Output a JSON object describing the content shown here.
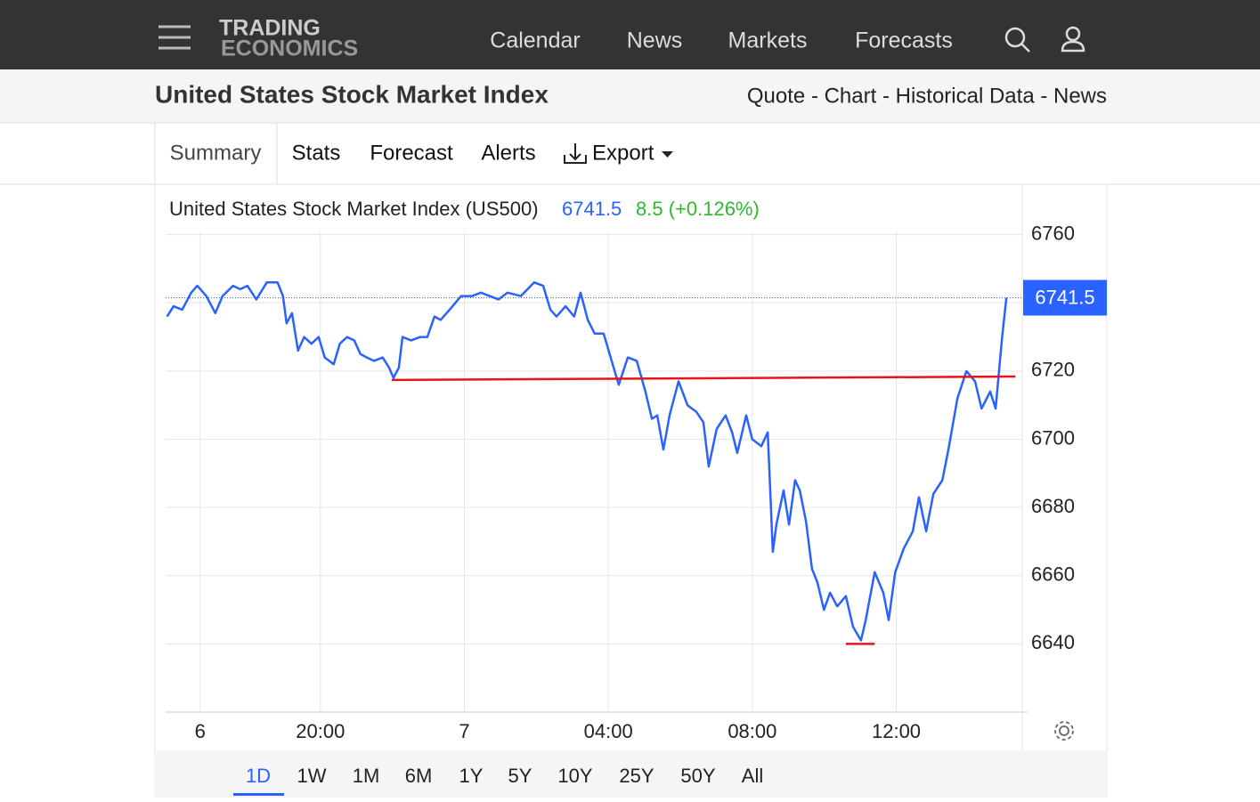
{
  "nav": {
    "logo_top": "TRADING",
    "logo_bottom": "ECONOMICS",
    "items": [
      "Calendar",
      "News",
      "Markets",
      "Forecasts"
    ]
  },
  "header": {
    "title": "United States Stock Market Index",
    "links": "Quote - Chart - Historical Data - News"
  },
  "tabs": [
    "Summary",
    "Stats",
    "Forecast",
    "Alerts",
    "Export"
  ],
  "chart_data": {
    "type": "line",
    "title": "United States Stock Market Index (US500)",
    "last": 6741.5,
    "change": "8.5 (+0.126%)",
    "color": "#2962ff",
    "x": [
      15.74,
      15.92,
      16.16,
      16.41,
      16.58,
      16.83,
      17.08,
      17.28,
      17.57,
      17.77,
      17.97,
      18.22,
      18.51,
      18.81,
      18.96,
      19.06,
      19.21,
      19.38,
      19.55,
      19.75,
      19.95,
      20.12,
      20.37,
      20.54,
      20.74,
      20.94,
      21.11,
      21.29,
      21.49,
      21.73,
      21.91,
      22.03,
      22.18,
      22.28,
      22.52,
      22.77,
      22.97,
      23.17,
      23.34,
      23.59,
      23.91,
      24.21,
      24.46,
      24.7,
      24.95,
      25.2,
      25.57,
      25.94,
      26.19,
      26.39,
      26.56,
      26.81,
      27.05,
      27.23,
      27.43,
      27.62,
      27.87,
      28.12,
      28.29,
      28.54,
      28.79,
      29.03,
      29.21,
      29.36,
      29.53,
      29.7,
      29.95,
      30.2,
      30.45,
      30.64,
      30.79,
      31.01,
      31.26,
      31.44,
      31.58,
      31.83,
      32.0,
      32.25,
      32.43,
      32.57,
      32.67,
      32.87,
      33.02,
      33.19,
      33.32,
      33.49,
      33.66,
      33.81,
      33.99,
      34.16,
      34.36,
      34.6,
      34.8,
      35.02,
      35.15,
      35.4,
      35.64,
      35.79,
      35.97,
      36.21,
      36.46,
      36.63,
      36.83,
      37.03,
      37.28,
      37.45,
      37.7,
      37.95,
      38.19,
      38.37,
      38.61,
      38.76,
      38.94,
      39.06
    ],
    "values": [
      6736,
      6739,
      6738,
      6743,
      6745,
      6742,
      6737,
      6742,
      6745,
      6744,
      6745,
      6741,
      6746,
      6746,
      6742,
      6734,
      6737,
      6726,
      6730,
      6728,
      6730,
      6724,
      6722,
      6728,
      6730,
      6729,
      6725,
      6724,
      6723,
      6724,
      6721,
      6718,
      6721,
      6730,
      6729,
      6730,
      6730,
      6736,
      6735,
      6738,
      6742,
      6742,
      6743,
      6742,
      6741,
      6743,
      6742,
      6746,
      6745,
      6738,
      6736,
      6739,
      6736,
      6743,
      6735,
      6731,
      6731,
      6722,
      6716,
      6724,
      6723,
      6714,
      6706,
      6707,
      6697,
      6707,
      6717,
      6710,
      6708,
      6705,
      6692,
      6703,
      6707,
      6702,
      6696,
      6707,
      6700,
      6698,
      6702,
      6667,
      6675,
      6685,
      6675,
      6688,
      6685,
      6676,
      6662,
      6658,
      6650,
      6655,
      6651,
      6654,
      6645,
      6641,
      6647,
      6661,
      6655,
      6647,
      6661,
      6668,
      6673,
      6683,
      6673,
      6684,
      6688,
      6697,
      6712,
      6720,
      6717,
      6709,
      6714,
      6709,
      6730,
      6741.5
    ],
    "annotations": [
      {
        "color": "#e8141c",
        "x": [
          21.98,
          39.31
        ],
        "y": [
          6717.4,
          6718.4
        ]
      },
      {
        "color": "#e8141c",
        "x": [
          34.6,
          35.4
        ],
        "y": [
          6640,
          6640
        ]
      }
    ],
    "xlim": [
      15.7,
      39.5
    ],
    "ylim": [
      6620,
      6774
    ],
    "xticks": [
      {
        "value": 16.66,
        "label": "6"
      },
      {
        "value": 20,
        "label": "20:00"
      },
      {
        "value": 24,
        "label": "7"
      },
      {
        "value": 28,
        "label": "04:00"
      },
      {
        "value": 32,
        "label": "08:00"
      },
      {
        "value": 36,
        "label": "12:00"
      }
    ],
    "yticks": [
      6640,
      6660,
      6680,
      6700,
      6720,
      6740,
      6760
    ],
    "grid": true
  },
  "ranges": [
    "1D",
    "1W",
    "1M",
    "6M",
    "1Y",
    "5Y",
    "10Y",
    "25Y",
    "50Y",
    "All"
  ]
}
